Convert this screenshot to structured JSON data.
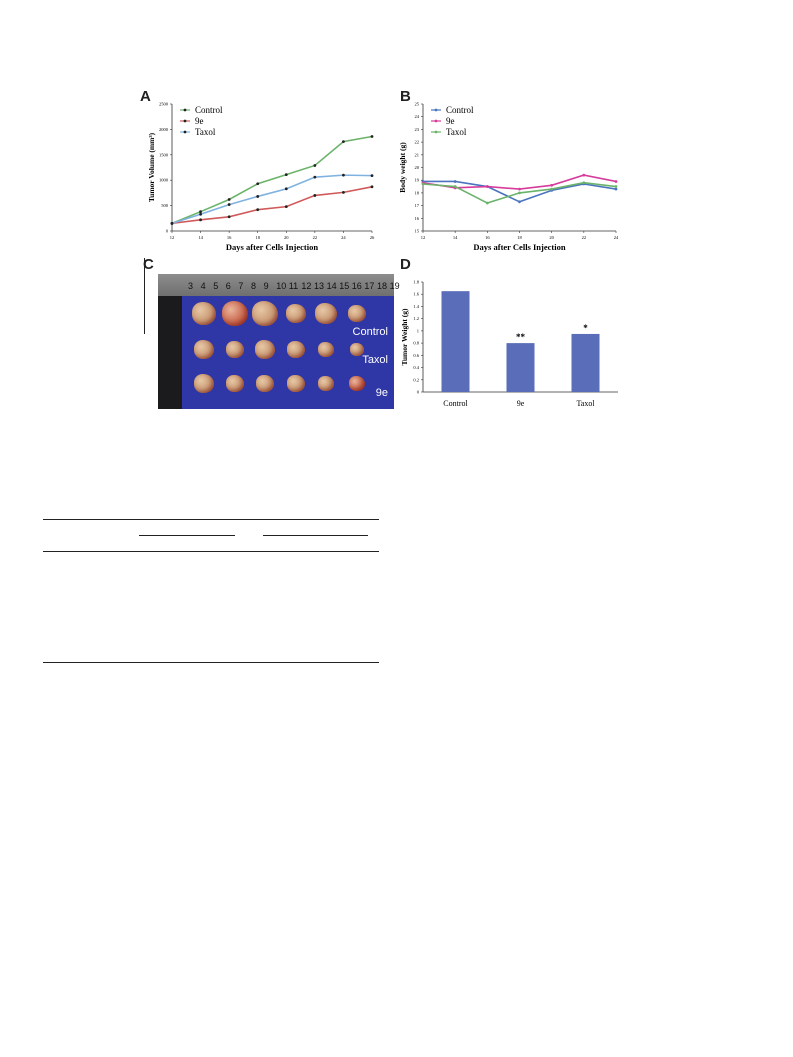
{
  "panels": {
    "a": {
      "letter": "A"
    },
    "b": {
      "letter": "B"
    },
    "c": {
      "letter": "C"
    },
    "d": {
      "letter": "D"
    }
  },
  "photo": {
    "ruler_numbers": [
      "3",
      "4",
      "5",
      "6",
      "7",
      "8",
      "9",
      "10",
      "11",
      "12",
      "13",
      "14",
      "15",
      "16",
      "17",
      "18",
      "19"
    ],
    "rows": [
      "Control",
      "Taxol",
      "9e"
    ]
  },
  "chart_data": [
    {
      "panel": "A",
      "type": "line",
      "xlabel": "Days after Cells Injection",
      "ylabel": "Tumor Volume (mm³)",
      "x": [
        12,
        14,
        16,
        18,
        20,
        22,
        24,
        26
      ],
      "xlim": [
        12,
        26
      ],
      "ylim": [
        0,
        2500
      ],
      "yticks": [
        0,
        500,
        1000,
        1500,
        2000,
        2500
      ],
      "legend": "top-left",
      "series": [
        {
          "name": "Control",
          "color": "#6bb36a",
          "values": [
            150,
            380,
            620,
            930,
            1110,
            1290,
            1760,
            1860
          ]
        },
        {
          "name": "9e",
          "color": "#d0595a",
          "values": [
            150,
            220,
            280,
            420,
            480,
            700,
            760,
            870
          ]
        },
        {
          "name": "Taxol",
          "color": "#7fb2e0",
          "values": [
            150,
            330,
            520,
            680,
            830,
            1060,
            1100,
            1090
          ]
        }
      ]
    },
    {
      "panel": "B",
      "type": "line",
      "xlabel": "Days after Cells Injection",
      "ylabel": "Body weight (g)",
      "x": [
        12,
        14,
        16,
        18,
        20,
        22,
        24
      ],
      "xlim": [
        12,
        24
      ],
      "ylim": [
        15,
        25
      ],
      "yticks": [
        15,
        16,
        17,
        18,
        19,
        20,
        21,
        22,
        23,
        24,
        25
      ],
      "legend": "top-left",
      "series": [
        {
          "name": "Control",
          "color": "#4a74c0",
          "values": [
            18.9,
            18.9,
            18.5,
            17.3,
            18.2,
            18.7,
            18.3
          ]
        },
        {
          "name": "9e",
          "color": "#d63c9c",
          "values": [
            18.8,
            18.4,
            18.5,
            18.3,
            18.6,
            19.4,
            18.9
          ]
        },
        {
          "name": "Taxol",
          "color": "#6bb36a",
          "values": [
            18.7,
            18.5,
            17.2,
            18.0,
            18.3,
            18.8,
            18.5
          ]
        }
      ]
    },
    {
      "panel": "D",
      "type": "bar",
      "ylabel": "Tumor Weight (g)",
      "categories": [
        "Control",
        "9e",
        "Taxol"
      ],
      "values": [
        1.65,
        0.8,
        0.95
      ],
      "annotations": [
        "",
        "**",
        "*"
      ],
      "ylim": [
        0,
        1.8
      ],
      "yticks": [
        0,
        0.2,
        0.4,
        0.6,
        0.8,
        1,
        1.2,
        1.4,
        1.6,
        1.8
      ],
      "color": "#5a6db8"
    }
  ]
}
